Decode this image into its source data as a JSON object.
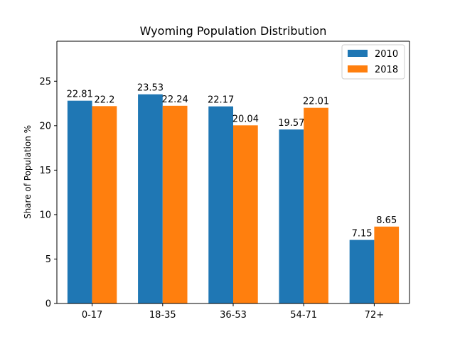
{
  "chart_data": {
    "type": "bar",
    "title": "Wyoming Population Distribution",
    "xlabel": "",
    "ylabel": "Share of Population %",
    "categories": [
      "0-17",
      "18-35",
      "36-53",
      "54-71",
      "72+"
    ],
    "series": [
      {
        "name": "2010",
        "color": "#1f77b4",
        "values": [
          22.81,
          23.53,
          22.17,
          19.57,
          7.15
        ],
        "labels": [
          "22.81",
          "23.53",
          "22.17",
          "19.57",
          "7.15"
        ]
      },
      {
        "name": "2018",
        "color": "#ff7f0e",
        "values": [
          22.2,
          22.24,
          20.04,
          22.01,
          8.65
        ],
        "labels": [
          "22.2",
          "22.24",
          "20.04",
          "22.01",
          "8.65"
        ]
      }
    ],
    "ylim": [
      0,
      29.5
    ],
    "yticks": [
      0,
      5,
      10,
      15,
      20,
      25
    ],
    "ytick_labels": [
      "0",
      "5",
      "10",
      "15",
      "20",
      "25"
    ],
    "grid": false,
    "legend_position": "top-right"
  }
}
